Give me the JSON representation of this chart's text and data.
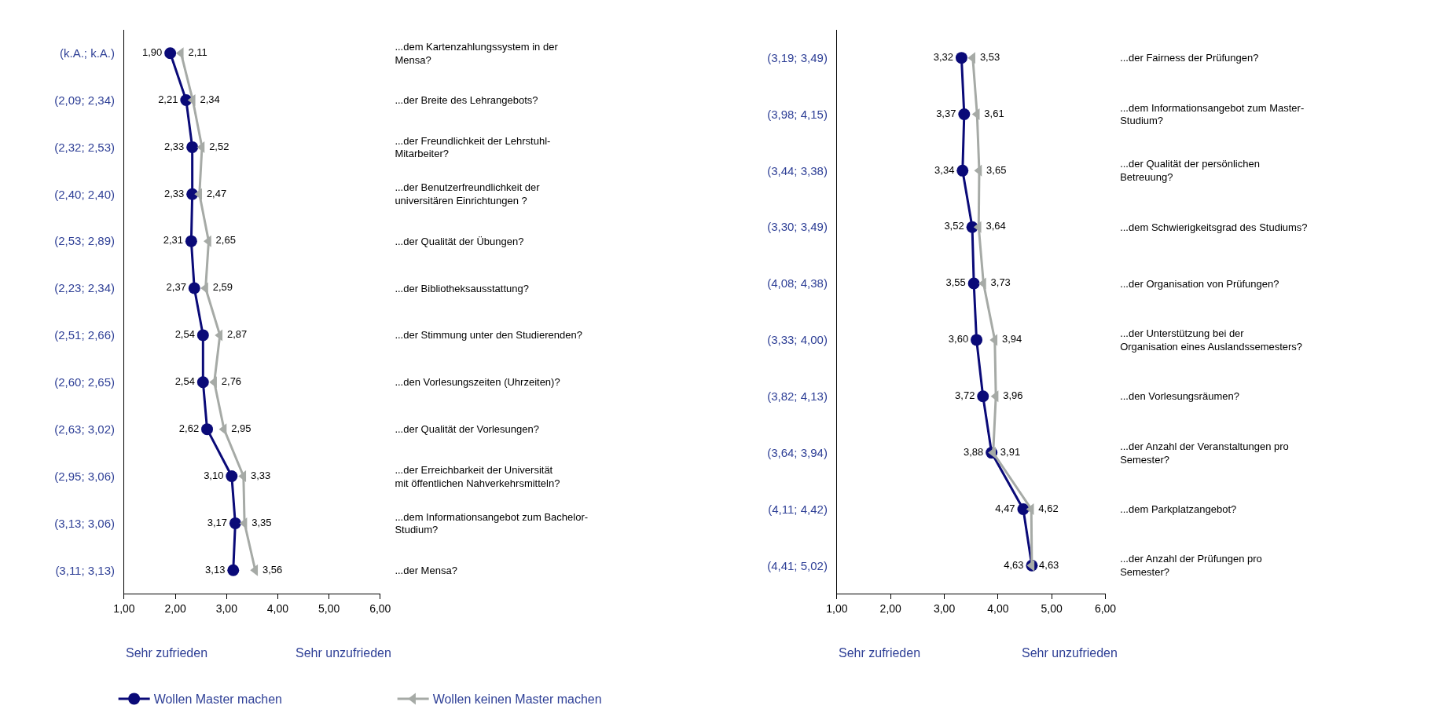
{
  "chart_data": [
    {
      "type": "line",
      "orientation": "horizontal",
      "categories": [
        "(k.A.; k.A.)",
        "(2,09; 2,34)",
        "(2,32; 2,53)",
        "(2,40; 2,40)",
        "(2,53; 2,89)",
        "(2,23; 2,34)",
        "(2,51; 2,66)",
        "(2,60; 2,65)",
        "(2,63; 3,02)",
        "(2,95; 3,06)",
        "(3,13; 3,06)",
        "(3,11; 3,13)"
      ],
      "y2_categories": [
        "...dem Kartenzahlungssystem in der Mensa?",
        "...der Breite des Lehrangebots?",
        "...der Freundlichkeit der Lehrstuhl-Mitarbeiter?",
        "...der Benutzerfreundlichkeit der universitären Einrichtungen ?",
        "...der Qualität der Übungen?",
        "...der Bibliotheksausstattung?",
        "...der Stimmung unter den Studierenden?",
        "...den Vorlesungszeiten (Uhrzeiten)?",
        "...der Qualität der Vorlesungen?",
        "...der Erreichbarkeit der Universität mit öffentlichen Nahverkehrsmitteln?",
        "...dem Informationsangebot zum Bachelor-Studium?",
        "...der Mensa?"
      ],
      "series": [
        {
          "name": "Wollen Master machen",
          "color": "#0a0a78",
          "marker": "circle",
          "values": [
            1.9,
            2.21,
            2.33,
            2.33,
            2.31,
            2.37,
            2.54,
            2.54,
            2.62,
            3.1,
            3.17,
            3.13
          ],
          "value_labels": [
            "1,90",
            "2,21",
            "2,33",
            "2,33",
            "2,31",
            "2,37",
            "2,54",
            "2,54",
            "2,62",
            "3,10",
            "3,17",
            "3,13"
          ]
        },
        {
          "name": "Wollen keinen Master machen",
          "color": "#a6aaa6",
          "marker": "triangle",
          "values": [
            2.11,
            2.34,
            2.52,
            2.47,
            2.65,
            2.59,
            2.87,
            2.76,
            2.95,
            3.33,
            3.35,
            3.56
          ],
          "value_labels": [
            "2,11",
            "2,34",
            "2,52",
            "2,47",
            "2,65",
            "2,59",
            "2,87",
            "2,76",
            "2,95",
            "3,33",
            "3,35",
            "3,56"
          ]
        }
      ],
      "xlim": [
        1,
        6
      ],
      "xticks": [
        {
          "value": 1,
          "label": "1,00"
        },
        {
          "value": 2,
          "label": "2,00"
        },
        {
          "value": 3,
          "label": "3,00"
        },
        {
          "value": 4,
          "label": "4,00"
        },
        {
          "value": 5,
          "label": "5,00"
        },
        {
          "value": 6,
          "label": "6,00"
        }
      ],
      "annotations": [
        "Sehr zufrieden",
        "Sehr unzufrieden"
      ],
      "legend": "bottom"
    },
    {
      "type": "line",
      "orientation": "horizontal",
      "categories": [
        "(3,19; 3,49)",
        "(3,98; 4,15)",
        "(3,44; 3,38)",
        "(3,30; 3,49)",
        "(4,08; 4,38)",
        "(3,33; 4,00)",
        "(3,82; 4,13)",
        "(3,64; 3,94)",
        "(4,11; 4,42)",
        "(4,41; 5,02)"
      ],
      "y2_categories": [
        "...der Fairness der Prüfungen?",
        "...dem Informationsangebot zum Master-Studium?",
        "...der Qualität der persönlichen Betreuung?",
        "...dem Schwierigkeitsgrad des Studiums?",
        "...der Organisation von Prüfungen?",
        "...der Unterstützung bei der Organisation eines Auslandssemesters?",
        "...den Vorlesungsräumen?",
        "...der Anzahl der Veranstaltungen pro Semester?",
        "...dem Parkplatzangebot?",
        "...der Anzahl der Prüfungen pro Semester?"
      ],
      "series": [
        {
          "color": "#0a0a78",
          "marker": "circle",
          "values": [
            3.32,
            3.37,
            3.34,
            3.52,
            3.55,
            3.6,
            3.72,
            3.88,
            4.47,
            4.63
          ],
          "value_labels": [
            "3,32",
            "3,37",
            "3,34",
            "3,52",
            "3,55",
            "3,60",
            "3,72",
            "3,88",
            "4,47",
            "4,63"
          ]
        },
        {
          "color": "#a6aaa6",
          "marker": "triangle",
          "values": [
            3.53,
            3.61,
            3.65,
            3.64,
            3.73,
            3.94,
            3.96,
            3.91,
            4.62,
            4.63
          ],
          "value_labels": [
            "3,53",
            "3,61",
            "3,65",
            "3,64",
            "3,73",
            "3,94",
            "3,96",
            "3,91",
            "4,62",
            "4,63"
          ]
        }
      ],
      "xlim": [
        1,
        6
      ],
      "xticks": [
        {
          "value": 1,
          "label": "1,00"
        },
        {
          "value": 2,
          "label": "2,00"
        },
        {
          "value": 3,
          "label": "3,00"
        },
        {
          "value": 4,
          "label": "4,00"
        },
        {
          "value": 5,
          "label": "5,00"
        },
        {
          "value": 6,
          "label": "6,00"
        }
      ],
      "annotations": [
        "Sehr zufrieden",
        "Sehr unzufrieden"
      ]
    }
  ]
}
